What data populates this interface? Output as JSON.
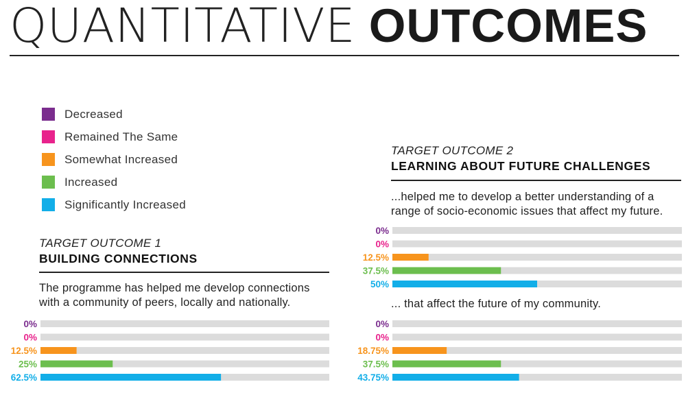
{
  "title": {
    "light": "QUANTITATIVE",
    "bold": "OUTCOMES"
  },
  "legend": [
    {
      "label": "Decreased",
      "color": "#7b2d8e"
    },
    {
      "label": "Remained The Same",
      "color": "#e8238c"
    },
    {
      "label": "Somewhat Increased",
      "color": "#f7941d"
    },
    {
      "label": "Increased",
      "color": "#6cbe4e"
    },
    {
      "label": "Significantly Increased",
      "color": "#12aee8"
    }
  ],
  "outcome1": {
    "kicker": "TARGET OUTCOME 1",
    "name": "BUILDING CONNECTIONS",
    "question": [
      "The programme has helped me develop connections",
      "with a community of peers, locally and nationally."
    ]
  },
  "outcome2": {
    "kicker": "TARGET OUTCOME 2",
    "name": "LEARNING ABOUT FUTURE CHALLENGES",
    "question1": [
      "...helped me to develop a better understanding of a",
      "range of socio-economic issues that affect my future."
    ],
    "question2": "... that affect the future of my community."
  },
  "chart_data": [
    {
      "type": "bar",
      "orientation": "horizontal",
      "categories": [
        "Decreased",
        "Remained The Same",
        "Somewhat Increased",
        "Increased",
        "Significantly Increased"
      ],
      "values": [
        0,
        0,
        12.5,
        25,
        62.5
      ],
      "labels": [
        "0%",
        "0%",
        "12.5%",
        "25%",
        "62.5%"
      ],
      "xlim": [
        0,
        100
      ],
      "colors": [
        "#7b2d8e",
        "#e8238c",
        "#f7941d",
        "#6cbe4e",
        "#12aee8"
      ],
      "track_color": "#dcdcdc"
    },
    {
      "type": "bar",
      "orientation": "horizontal",
      "categories": [
        "Decreased",
        "Remained The Same",
        "Somewhat Increased",
        "Increased",
        "Significantly Increased"
      ],
      "values": [
        0,
        0,
        12.5,
        37.5,
        50
      ],
      "labels": [
        "0%",
        "0%",
        "12.5%",
        "37.5%",
        "50%"
      ],
      "xlim": [
        0,
        100
      ],
      "colors": [
        "#7b2d8e",
        "#e8238c",
        "#f7941d",
        "#6cbe4e",
        "#12aee8"
      ],
      "track_color": "#dcdcdc"
    },
    {
      "type": "bar",
      "orientation": "horizontal",
      "categories": [
        "Decreased",
        "Remained The Same",
        "Somewhat Increased",
        "Increased",
        "Significantly Increased"
      ],
      "values": [
        0,
        0,
        18.75,
        37.5,
        43.75
      ],
      "labels": [
        "0%",
        "0%",
        "18.75%",
        "37.5%",
        "43.75%"
      ],
      "xlim": [
        0,
        100
      ],
      "colors": [
        "#7b2d8e",
        "#e8238c",
        "#f7941d",
        "#6cbe4e",
        "#12aee8"
      ],
      "track_color": "#dcdcdc"
    }
  ]
}
